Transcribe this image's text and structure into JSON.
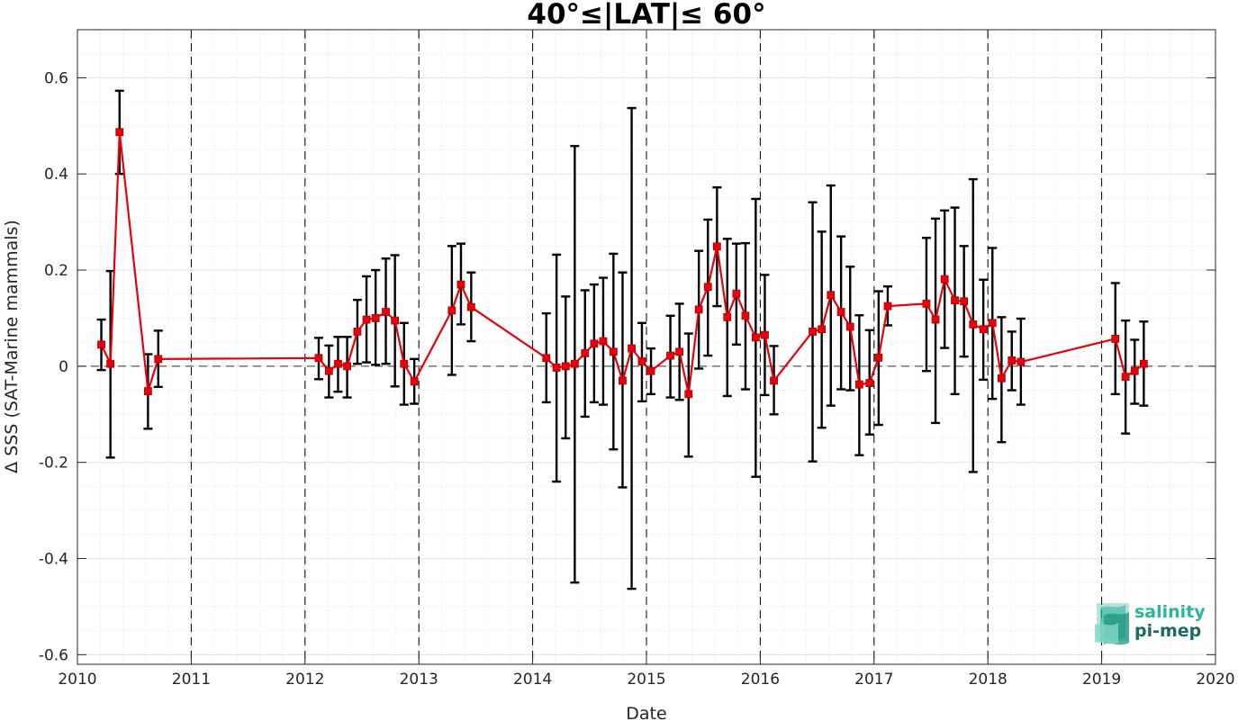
{
  "chart_data": {
    "type": "line",
    "title": "40°≤|LAT|≤ 60°",
    "xlabel": "Date",
    "ylabel": "Δ SSS (SAT-Marine mammals)",
    "xlim": [
      2010,
      2020
    ],
    "ylim": [
      -0.62,
      0.7
    ],
    "x_ticks": [
      "2010",
      "2011",
      "2012",
      "2013",
      "2014",
      "2015",
      "2016",
      "2017",
      "2018",
      "2019",
      "2020"
    ],
    "y_ticks": [
      "0.6",
      "0.4",
      "0.2",
      "0",
      "-0.2",
      "-0.4",
      "-0.6"
    ],
    "y_tick_values": [
      0.6,
      0.4,
      0.2,
      0,
      -0.2,
      -0.4,
      -0.6
    ],
    "grid": true,
    "year_separators": true,
    "zero_line": true,
    "series": [
      {
        "color": "#e8000b",
        "marker": "square",
        "x": [
          2010.21,
          2010.29,
          2010.37,
          2010.62,
          2010.71,
          2012.12,
          2012.21,
          2012.29,
          2012.37,
          2012.46,
          2012.54,
          2012.62,
          2012.71,
          2012.79,
          2012.87,
          2012.96,
          2013.29,
          2013.37,
          2013.46,
          2014.12,
          2014.21,
          2014.29,
          2014.37,
          2014.46,
          2014.54,
          2014.62,
          2014.71,
          2014.79,
          2014.87,
          2014.96,
          2015.04,
          2015.21,
          2015.29,
          2015.37,
          2015.46,
          2015.54,
          2015.62,
          2015.71,
          2015.79,
          2015.87,
          2015.96,
          2016.04,
          2016.12,
          2016.46,
          2016.54,
          2016.62,
          2016.71,
          2016.79,
          2016.87,
          2016.96,
          2017.04,
          2017.12,
          2017.46,
          2017.54,
          2017.62,
          2017.71,
          2017.79,
          2017.87,
          2017.96,
          2018.04,
          2018.12,
          2018.21,
          2018.29,
          2019.12,
          2019.21,
          2019.29,
          2019.37
        ],
        "y": [
          0.045,
          0.005,
          0.487,
          -0.052,
          0.015,
          0.017,
          -0.01,
          0.005,
          0.0,
          0.072,
          0.097,
          0.1,
          0.113,
          0.095,
          0.005,
          -0.032,
          0.116,
          0.17,
          0.123,
          0.017,
          -0.003,
          0.0,
          0.005,
          0.027,
          0.047,
          0.052,
          0.03,
          -0.03,
          0.037,
          0.01,
          -0.01,
          0.022,
          0.03,
          -0.058,
          0.118,
          0.165,
          0.249,
          0.102,
          0.151,
          0.105,
          0.06,
          0.065,
          -0.03,
          0.072,
          0.077,
          0.148,
          0.113,
          0.082,
          -0.038,
          -0.035,
          0.018,
          0.125,
          0.13,
          0.097,
          0.181,
          0.137,
          0.135,
          0.087,
          0.077,
          0.09,
          -0.025,
          0.012,
          0.009,
          0.057,
          -0.022,
          -0.01,
          0.005
        ],
        "err_low": [
          -0.008,
          -0.19,
          0.4,
          -0.13,
          -0.043,
          -0.027,
          -0.065,
          -0.053,
          -0.065,
          0.005,
          0.008,
          0.003,
          0.005,
          -0.042,
          -0.08,
          -0.078,
          -0.018,
          0.087,
          0.052,
          -0.075,
          -0.24,
          -0.15,
          -0.45,
          -0.105,
          -0.075,
          -0.08,
          -0.173,
          -0.252,
          -0.463,
          -0.073,
          -0.058,
          -0.065,
          -0.07,
          -0.188,
          -0.005,
          0.022,
          0.125,
          -0.062,
          0.045,
          -0.048,
          -0.23,
          -0.06,
          -0.1,
          -0.198,
          -0.128,
          -0.082,
          -0.048,
          -0.05,
          -0.185,
          -0.142,
          -0.122,
          0.085,
          -0.01,
          -0.118,
          0.038,
          -0.058,
          0.02,
          -0.22,
          -0.028,
          -0.068,
          -0.158,
          -0.05,
          -0.08,
          -0.058,
          -0.14,
          -0.078,
          -0.082
        ],
        "err_high": [
          0.097,
          0.198,
          0.573,
          0.025,
          0.074,
          0.059,
          0.043,
          0.061,
          0.061,
          0.138,
          0.187,
          0.2,
          0.224,
          0.231,
          0.09,
          0.015,
          0.25,
          0.255,
          0.195,
          0.11,
          0.232,
          0.145,
          0.458,
          0.158,
          0.17,
          0.184,
          0.234,
          0.195,
          0.537,
          0.09,
          0.037,
          0.105,
          0.13,
          0.068,
          0.24,
          0.305,
          0.372,
          0.265,
          0.255,
          0.256,
          0.348,
          0.19,
          0.042,
          0.341,
          0.28,
          0.376,
          0.27,
          0.207,
          0.106,
          0.075,
          0.156,
          0.166,
          0.267,
          0.307,
          0.324,
          0.33,
          0.25,
          0.389,
          0.18,
          0.246,
          0.102,
          0.072,
          0.099,
          0.173,
          0.095,
          0.055,
          0.093
        ]
      }
    ]
  },
  "logo": {
    "line1": "salinity",
    "line2": "pi-mep",
    "color1": "#2bb59a",
    "color2": "#1a6b61"
  }
}
